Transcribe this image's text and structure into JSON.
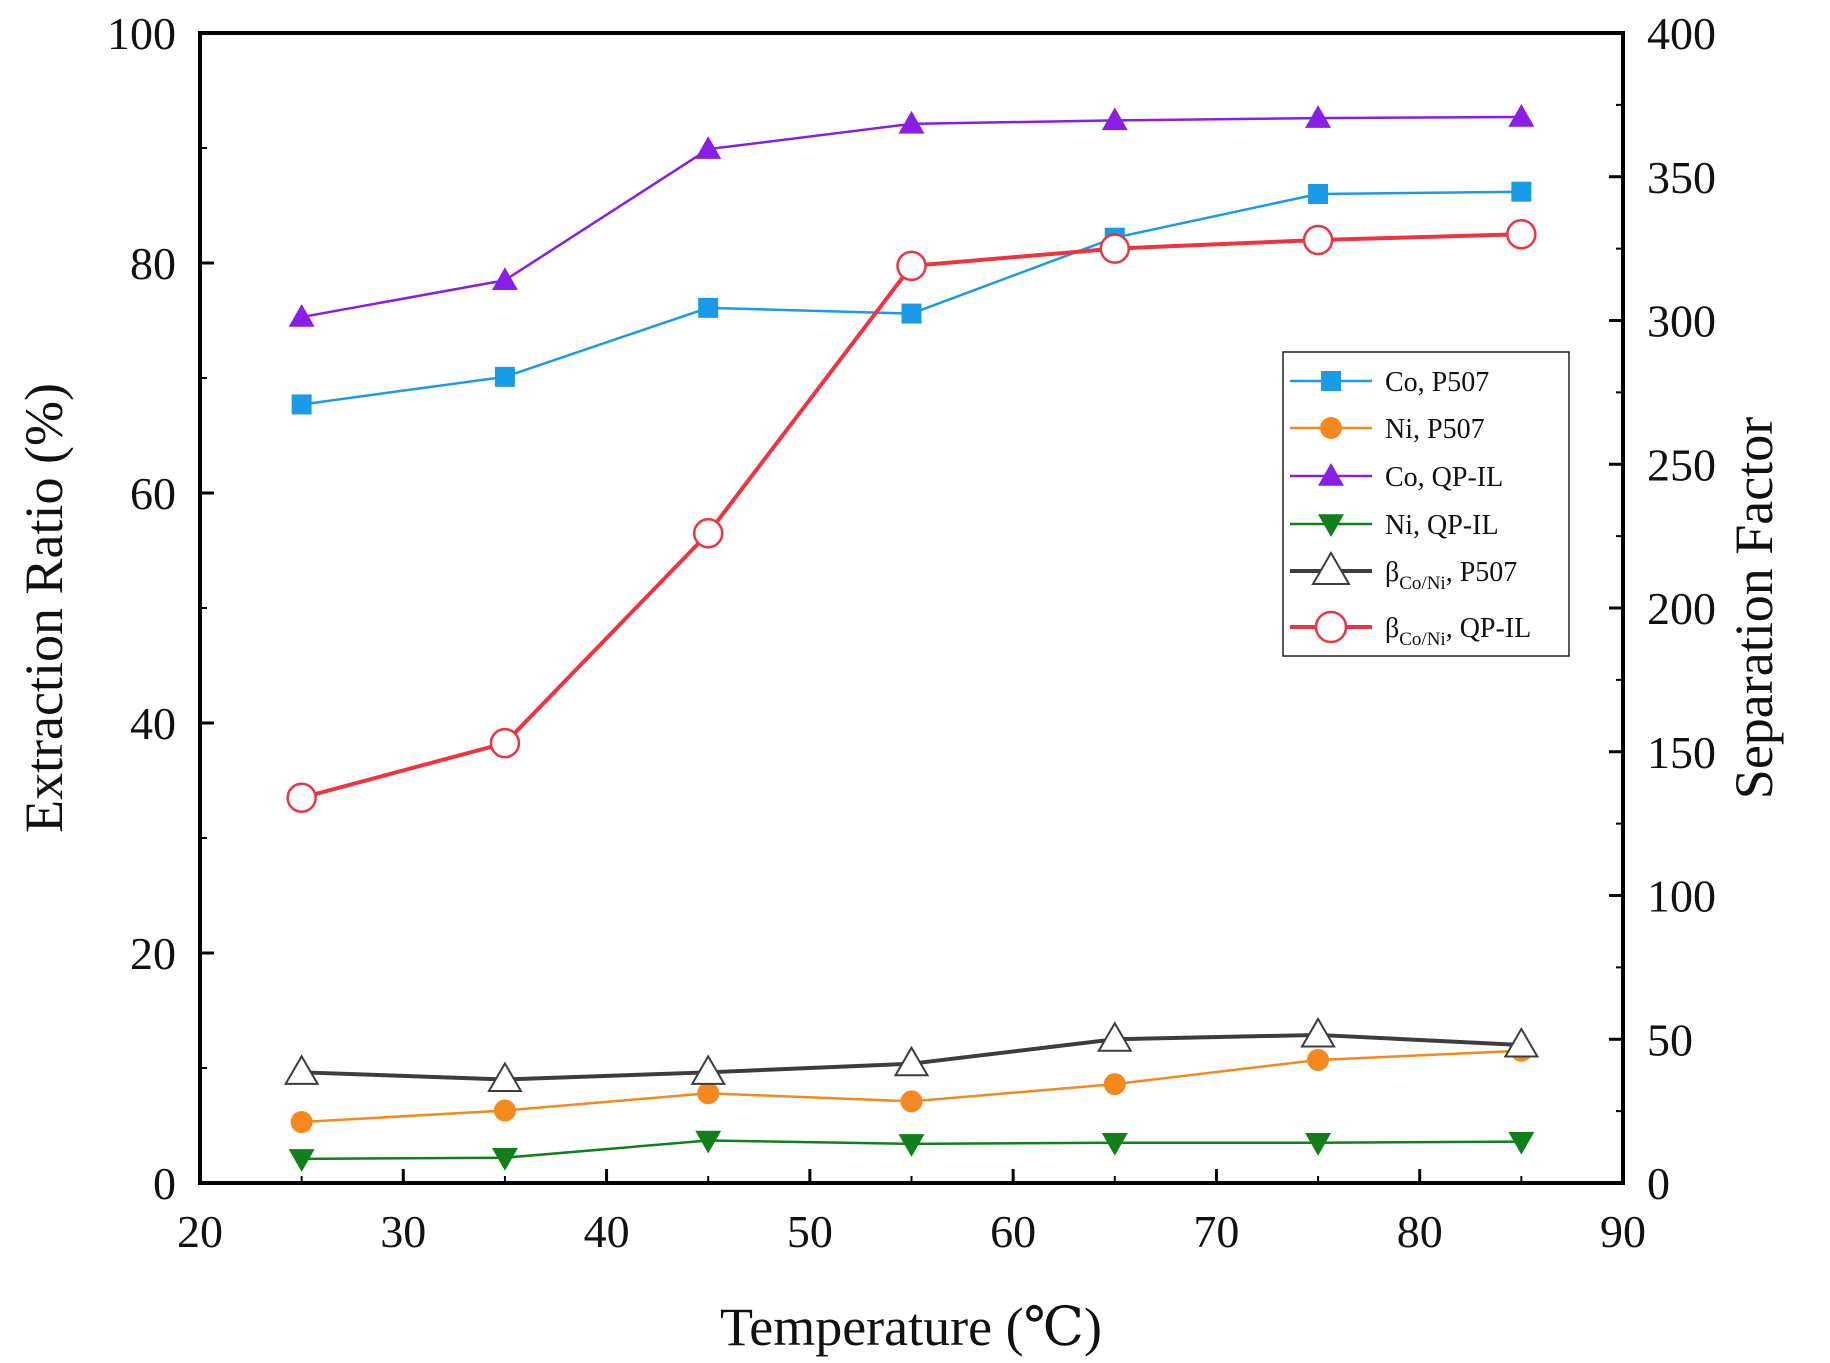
{
  "chart_data": {
    "type": "line",
    "title": "",
    "xlabel": "Temperature (℃)",
    "ylabel": "Extraction Ratio (%)",
    "y2label": "Separation Factor",
    "xlim": [
      20,
      90
    ],
    "ylim": [
      0,
      100
    ],
    "y2lim": [
      0,
      400
    ],
    "xticks": [
      20,
      30,
      40,
      50,
      60,
      70,
      80,
      90
    ],
    "yticks": [
      0,
      20,
      40,
      60,
      80,
      100
    ],
    "y2ticks": [
      0,
      50,
      100,
      150,
      200,
      250,
      300,
      350,
      400
    ],
    "grid": false,
    "legend_position": "right-middle",
    "x": [
      25,
      35,
      45,
      55,
      65,
      75,
      85
    ],
    "series": [
      {
        "name": "Co, P507",
        "label_main": "Co, P507",
        "label_sub": "",
        "label_tail": "",
        "axis": "left",
        "color": "#1a9be8",
        "marker": "square",
        "values": [
          67.7,
          70.1,
          76.1,
          75.6,
          82.2,
          86.0,
          86.2
        ]
      },
      {
        "name": "Ni, P507",
        "label_main": "Ni, P507",
        "label_sub": "",
        "label_tail": "",
        "axis": "left",
        "color": "#f5891e",
        "marker": "circle",
        "values": [
          5.3,
          6.3,
          7.8,
          7.1,
          8.6,
          10.7,
          11.5
        ]
      },
      {
        "name": "Co, QP-IL",
        "label_main": "Co, QP-IL",
        "label_sub": "",
        "label_tail": "",
        "axis": "left",
        "color": "#8a1ee6",
        "marker": "triangle-up",
        "values": [
          75.3,
          78.5,
          89.9,
          92.1,
          92.4,
          92.6,
          92.7
        ]
      },
      {
        "name": "Ni,  QP-IL",
        "label_main": "Ni,  QP-IL",
        "label_sub": "",
        "label_tail": "",
        "axis": "left",
        "color": "#11801a",
        "marker": "triangle-down",
        "values": [
          2.1,
          2.2,
          3.7,
          3.4,
          3.5,
          3.5,
          3.6
        ]
      },
      {
        "name": "βCo/Ni, P507",
        "label_main": "β",
        "label_sub": "Co/Ni",
        "label_tail": ", P507",
        "axis": "right",
        "color": "#3d3d3d",
        "marker": "triangle-up-open",
        "values": [
          38.5,
          36,
          38.5,
          41.5,
          50,
          51.5,
          48
        ]
      },
      {
        "name": "βCo/Ni, QP-IL",
        "label_main": "β",
        "label_sub": "Co/Ni",
        "label_tail": ", QP-IL",
        "axis": "right",
        "color": "#ef3340",
        "marker": "circle-open",
        "values": [
          134,
          153,
          226,
          319,
          325,
          328,
          330
        ]
      }
    ]
  }
}
